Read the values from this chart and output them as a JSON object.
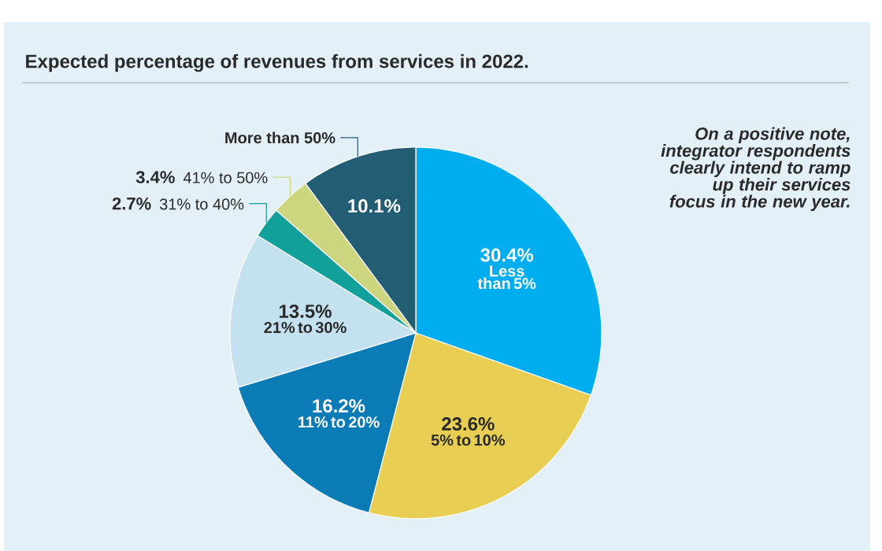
{
  "chart_data": {
    "type": "pie",
    "title": "Expected percentage of revenues from services in 2022.",
    "categories": [
      "Less than 5%",
      "5% to 10%",
      "11% to 20%",
      "21% to 30%",
      "31% to 40%",
      "41% to 50%",
      "More than 50%"
    ],
    "values": [
      30.4,
      23.6,
      16.2,
      13.5,
      2.7,
      3.4,
      10.1
    ],
    "colors": [
      "#00aeef",
      "#e8cf53",
      "#0a7bb5",
      "#c3e1ef",
      "#12a09a",
      "#cdd57e",
      "#235d74"
    ],
    "value_labels": [
      "30.4%",
      "23.6%",
      "16.2%",
      "13.5%",
      "2.7%",
      "3.4%",
      "10.1%"
    ],
    "annotations": [
      "On a positive note, integrator respondents clearly intend to ramp up their services focus in the new year."
    ]
  }
}
